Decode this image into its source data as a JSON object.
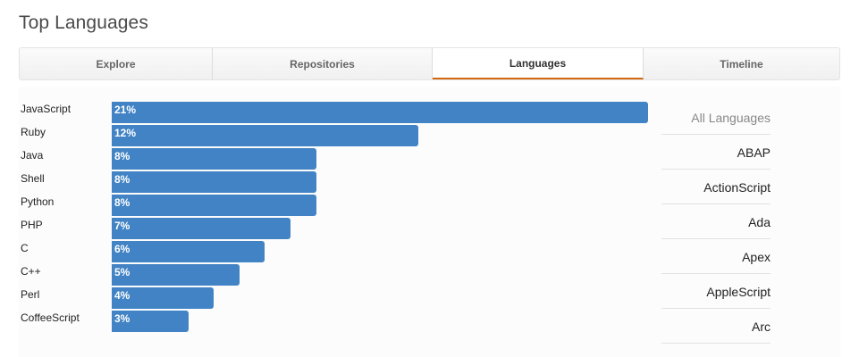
{
  "page": {
    "title": "Top Languages"
  },
  "tabs": [
    {
      "label": "Explore",
      "selected": false
    },
    {
      "label": "Repositories",
      "selected": false
    },
    {
      "label": "Languages",
      "selected": true
    },
    {
      "label": "Timeline",
      "selected": false
    }
  ],
  "languages": [
    {
      "name": "JavaScript",
      "percent": 21,
      "label": "21%"
    },
    {
      "name": "Ruby",
      "percent": 12,
      "label": "12%"
    },
    {
      "name": "Java",
      "percent": 8,
      "label": "8%"
    },
    {
      "name": "Shell",
      "percent": 8,
      "label": "8%"
    },
    {
      "name": "Python",
      "percent": 8,
      "label": "8%"
    },
    {
      "name": "PHP",
      "percent": 7,
      "label": "7%"
    },
    {
      "name": "C",
      "percent": 6,
      "label": "6%"
    },
    {
      "name": "C++",
      "percent": 5,
      "label": "5%"
    },
    {
      "name": "Perl",
      "percent": 4,
      "label": "4%"
    },
    {
      "name": "CoffeeScript",
      "percent": 3,
      "label": "3%"
    }
  ],
  "filter": {
    "items": [
      "All Languages",
      "ABAP",
      "ActionScript",
      "Ada",
      "Apex",
      "AppleScript",
      "Arc"
    ]
  },
  "colors": {
    "bar": "#4183c4",
    "tab_selected_underline": "#d26911"
  }
}
